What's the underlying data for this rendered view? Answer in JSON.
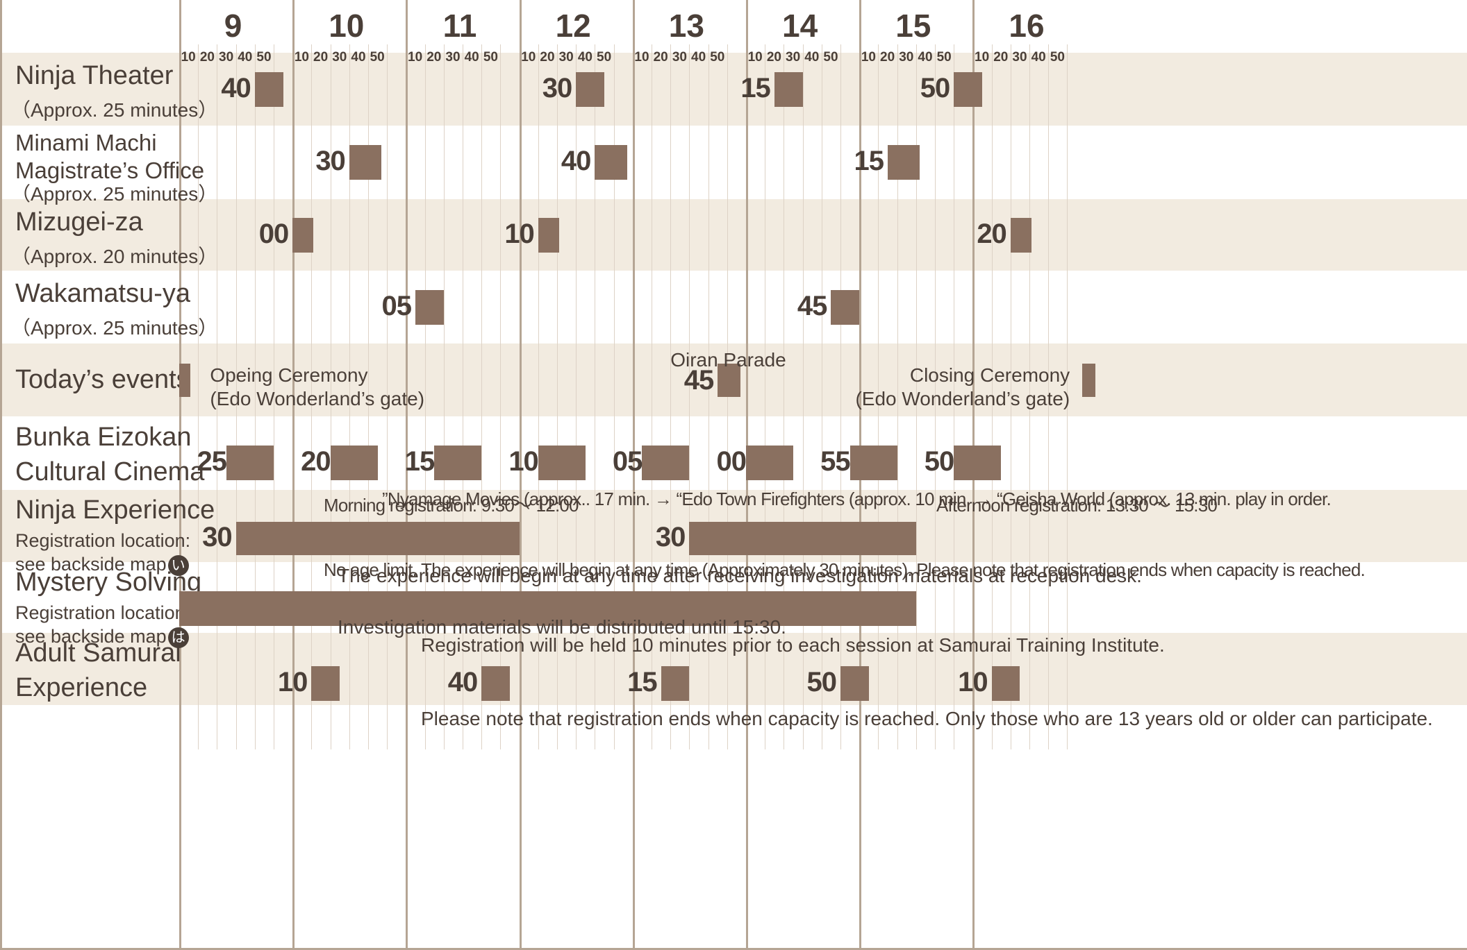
{
  "timeline": {
    "start_hour": 9,
    "end_hour": 16,
    "hours": [
      "9",
      "10",
      "11",
      "12",
      "13",
      "14",
      "15",
      "16"
    ],
    "minute_ticks": [
      "10",
      "20",
      "30",
      "40",
      "50"
    ]
  },
  "colors": {
    "band_shaded": "#f2ebe0",
    "band_plain": "#ffffff",
    "bar": "#8a7060",
    "hour_line": "#b5a594",
    "minor_line": "#ddd2c6",
    "text": "#4a3f38"
  },
  "rows": [
    {
      "key": "ninja_theater",
      "title_lines": [
        "Ninja Theater"
      ],
      "sub_lines": [
        "（Approx. 25 minutes）"
      ],
      "sessions": [
        {
          "label": "40",
          "start": "9:40",
          "end": "9:55"
        },
        {
          "label": "30",
          "start": "12:30",
          "end": "12:45"
        },
        {
          "label": "15",
          "start": "14:15",
          "end": "14:30"
        },
        {
          "label": "50",
          "start": "15:50",
          "end": "16:05"
        }
      ]
    },
    {
      "key": "minami_machi",
      "title_lines": [
        "Minami Machi",
        "Magistrate’s Office"
      ],
      "sub_lines": [
        "（Approx. 25 minutes）"
      ],
      "sessions": [
        {
          "label": "30",
          "start": "10:30",
          "end": "10:47"
        },
        {
          "label": "40",
          "start": "12:40",
          "end": "12:57"
        },
        {
          "label": "15",
          "start": "15:15",
          "end": "15:32"
        }
      ]
    },
    {
      "key": "mizugei_za",
      "title_lines": [
        "Mizugei-za"
      ],
      "sub_lines": [
        "（Approx. 20 minutes）"
      ],
      "sessions": [
        {
          "label": "00",
          "start": "10:00",
          "end": "10:11"
        },
        {
          "label": "10",
          "start": "12:10",
          "end": "12:21"
        },
        {
          "label": "20",
          "start": "16:20",
          "end": "16:31"
        }
      ]
    },
    {
      "key": "wakamatsu_ya",
      "title_lines": [
        "Wakamatsu-ya"
      ],
      "sub_lines": [
        "（Approx. 25 minutes）"
      ],
      "sessions": [
        {
          "label": "05",
          "start": "11:05",
          "end": "11:20"
        },
        {
          "label": "45",
          "start": "14:45",
          "end": "15:00"
        }
      ]
    },
    {
      "key": "todays_events",
      "title_lines": [
        "Today’s events"
      ],
      "sub_lines": [],
      "events": [
        {
          "name": "Opeing Ceremony",
          "location": "(Edo Wonderland’s gate)",
          "start": "9:00",
          "end": "9:06"
        },
        {
          "name": "Oiran Parade",
          "label": "45",
          "start": "13:45",
          "end": "13:57"
        },
        {
          "name": "Closing Ceremony",
          "location": "(Edo Wonderland’s gate)",
          "start": "16:58",
          "end": "17:05"
        }
      ]
    },
    {
      "key": "bunka_eizokan",
      "title_lines": [
        "Bunka Eizokan",
        "Cultural Cinema"
      ],
      "sub_lines": [],
      "sessions": [
        {
          "label": "25",
          "start": "9:25",
          "end": "9:50"
        },
        {
          "label": "20",
          "start": "10:20",
          "end": "10:45"
        },
        {
          "label": "15",
          "start": "11:15",
          "end": "11:40"
        },
        {
          "label": "10",
          "start": "12:10",
          "end": "12:35"
        },
        {
          "label": "05",
          "start": "13:05",
          "end": "13:30"
        },
        {
          "label": "00",
          "start": "14:00",
          "end": "14:25"
        },
        {
          "label": "55",
          "start": "14:55",
          "end": "15:20"
        },
        {
          "label": "50",
          "start": "15:50",
          "end": "16:15"
        }
      ],
      "note": "”Nyamage Movies (approx.. 17 min. → “Edo Town Firefighters (approx. 10 min. → “Geisha World (approx. 13 min. play in order."
    },
    {
      "key": "ninja_experience",
      "title_lines": [
        "Ninja Experience"
      ],
      "reg_lines": [
        "Registration location:",
        "see backside map"
      ],
      "map_glyph": "い",
      "sessions": [
        {
          "label": "30",
          "start": "9:30",
          "end": "12:00"
        },
        {
          "label": "30",
          "start": "13:30",
          "end": "15:30"
        }
      ],
      "top_notes": [
        "Morning registration: 9:30～ 12:00",
        "Afternoon registration: 13:30 ～ 15:30"
      ],
      "bottom_note": "No age limit. The experience will begin at any time (Approximately 30 minutes). Please note that registration ends when capacity is reached."
    },
    {
      "key": "mystery_solving",
      "title_lines": [
        "Mystery Solving"
      ],
      "reg_lines": [
        "Registration location:",
        "see backside map"
      ],
      "map_glyph": "は",
      "bar": {
        "start": "9:00",
        "end": "15:30"
      },
      "top_note": "The experience will begin at any time after receiving investigation materials at reception desk.",
      "bottom_note": "Investigation materials will be distributed until 15:30."
    },
    {
      "key": "adult_samurai",
      "title_lines": [
        "Adult Samurai",
        "Experience"
      ],
      "sub_lines": [],
      "sessions": [
        {
          "label": "10",
          "start": "10:10",
          "end": "10:25"
        },
        {
          "label": "40",
          "start": "11:40",
          "end": "11:55"
        },
        {
          "label": "15",
          "start": "13:15",
          "end": "13:30"
        },
        {
          "label": "50",
          "start": "14:50",
          "end": "15:05"
        },
        {
          "label": "10",
          "start": "16:10",
          "end": "16:25"
        }
      ],
      "top_note": "Registration will be held 10 minutes prior to each session at Samurai Training Institute.",
      "bottom_note": "Please note that registration ends when capacity is reached. Only those who are 13 years old or older can participate."
    }
  ]
}
